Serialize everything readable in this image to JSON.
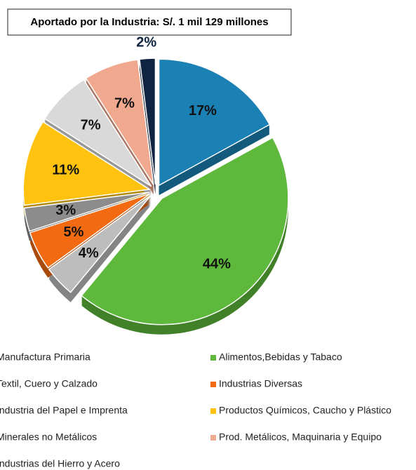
{
  "chart_data": {
    "type": "pie",
    "title": "Aportado por la Industria: S/.  1 mil 129 millones",
    "categories": [
      "Manufactura Primaria",
      "Alimentos,Bebidas y Tabaco",
      "Textil, Cuero y Calzado",
      "Industrias Diversas",
      "Industria del Papel e Imprenta",
      "Productos Químicos, Caucho y Plástico",
      "Minerales no Metálicos",
      "Prod. Metálicos, Maquinaria y Equipo",
      "Industrias del Hierro y Acero"
    ],
    "values": [
      17,
      44,
      4,
      5,
      3,
      11,
      7,
      7,
      2
    ],
    "value_labels": [
      "17%",
      "44%",
      "4%",
      "5%",
      "3%",
      "11%",
      "7%",
      "7%",
      "2%"
    ],
    "colors": [
      "#1b80b3",
      "#5db83b",
      "#bdbdbd",
      "#f26b12",
      "#8c8c8c",
      "#ffc30f",
      "#d9d9d9",
      "#f0a98f",
      "#0f2440"
    ],
    "legend": "bottom"
  }
}
